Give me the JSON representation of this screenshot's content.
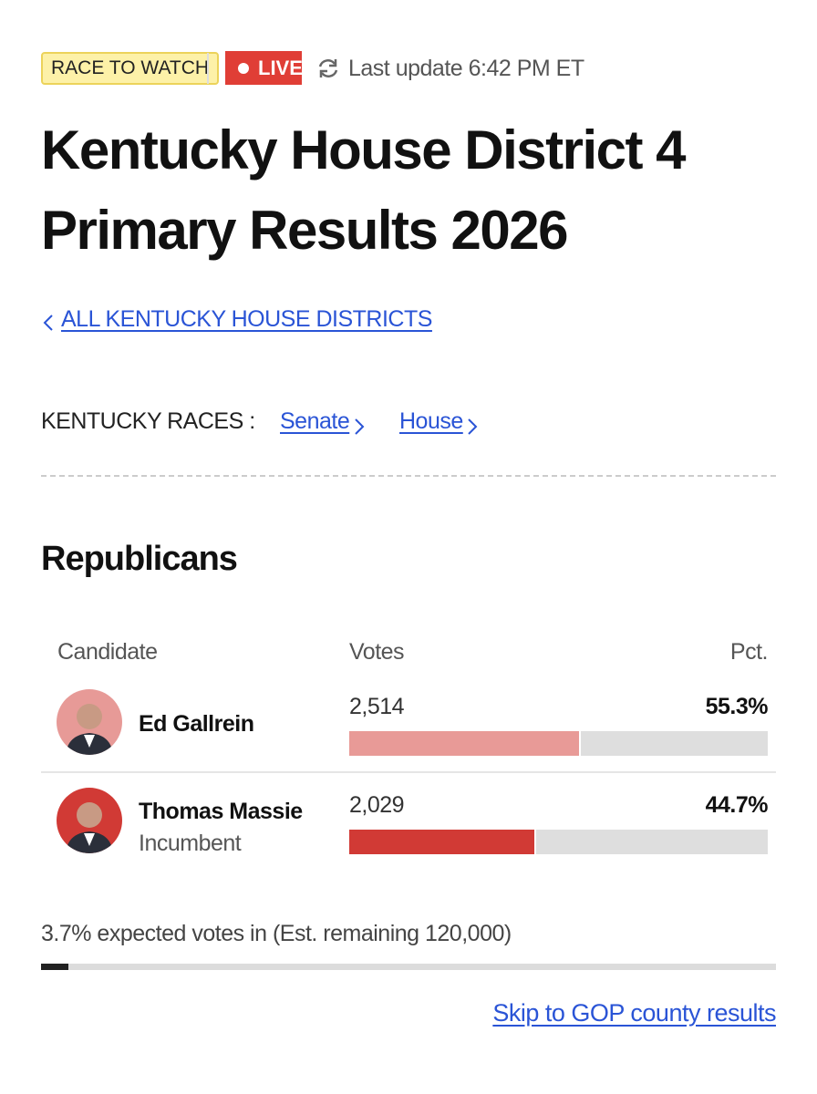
{
  "header": {
    "badge": "RACE TO WATCH",
    "live": "LIVE",
    "last_update": "Last update 6:42 PM ET",
    "title_line1": "Kentucky House District 4",
    "title_line2": "Primary Results 2026"
  },
  "back_link": "ALL KENTUCKY HOUSE DISTRICTS",
  "races": {
    "label": "KENTUCKY RACES :",
    "links": [
      "Senate",
      "House"
    ]
  },
  "section": "Republicans",
  "table": {
    "columns": [
      "Candidate",
      "Votes",
      "Pct."
    ],
    "rows": [
      {
        "name": "Ed Gallrein",
        "votes": "2,514",
        "pct": "55.3%",
        "pct_value": 55.3,
        "color": "#e89a97",
        "avatar": "#e79a97"
      },
      {
        "name": "Thomas Massie",
        "note": "Incumbent",
        "votes": "2,029",
        "pct": "44.7%",
        "pct_value": 44.7,
        "color": "#d13a35",
        "avatar": "#d13a35"
      }
    ]
  },
  "progress": {
    "text": "3.7% expected votes in (Est. remaining 120,000)",
    "value": 3.7
  },
  "skip_link": "Skip to GOP county results"
}
